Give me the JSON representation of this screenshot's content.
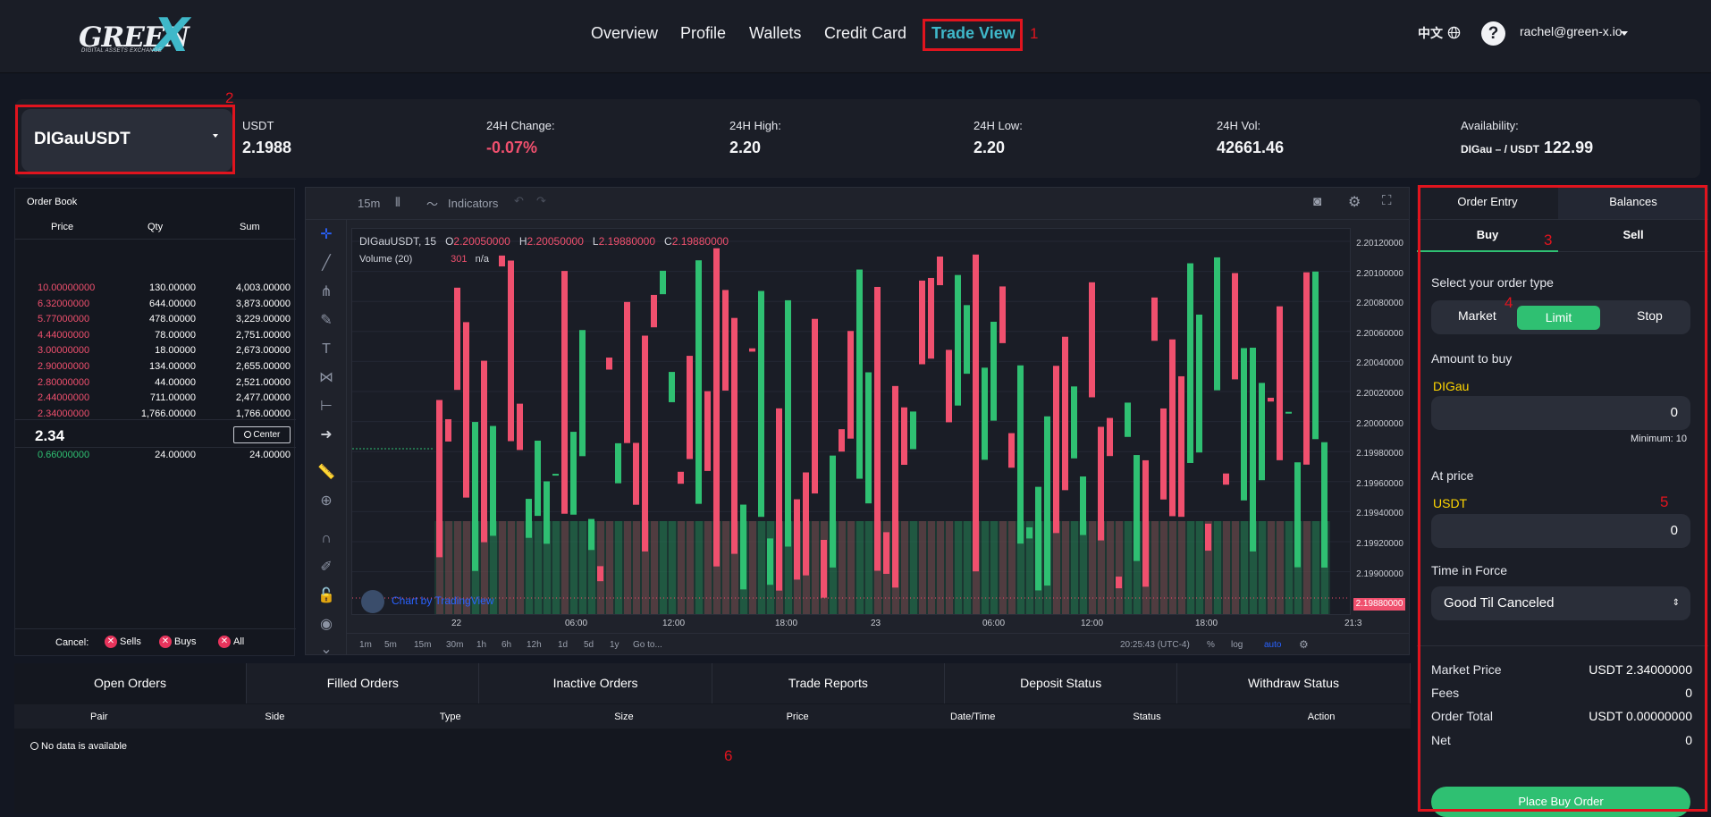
{
  "header": {
    "logo_text": "GREEN",
    "logo_x": "X",
    "logo_sub": "DIGITAL ASSETS EXCHANGE",
    "nav": [
      "Overview",
      "Profile",
      "Wallets",
      "Credit Card",
      "Trade View"
    ],
    "active_nav": "Trade View",
    "language": "中文",
    "help": "?",
    "user": "rachel@green-x.io"
  },
  "annotations": [
    "1",
    "2",
    "3",
    "4",
    "5",
    "6"
  ],
  "ticker": {
    "pair": "DIGauUSDT",
    "quote_label": "USDT",
    "last_price": "2.1988",
    "change_label": "24H Change:",
    "change_value": "-0.07%",
    "high_label": "24H High:",
    "high_value": "2.20",
    "low_label": "24H Low:",
    "low_value": "2.20",
    "vol_label": "24H Vol:",
    "vol_value": "42661.46",
    "avail_label": "Availability:",
    "avail_small": "DIGau – / USDT",
    "avail_value": "122.99"
  },
  "orderbook": {
    "title": "Order Book",
    "headers": [
      "Price",
      "Qty",
      "Sum"
    ],
    "sells": [
      [
        "10.00000000",
        "130.00000",
        "4,003.00000"
      ],
      [
        "6.32000000",
        "644.00000",
        "3,873.00000"
      ],
      [
        "5.77000000",
        "478.00000",
        "3,229.00000"
      ],
      [
        "4.44000000",
        "78.00000",
        "2,751.00000"
      ],
      [
        "3.00000000",
        "18.00000",
        "2,673.00000"
      ],
      [
        "2.90000000",
        "134.00000",
        "2,655.00000"
      ],
      [
        "2.80000000",
        "44.00000",
        "2,521.00000"
      ],
      [
        "2.44000000",
        "711.00000",
        "2,477.00000"
      ],
      [
        "2.34000000",
        "1,766.00000",
        "1,766.00000"
      ]
    ],
    "last": "2.34",
    "center_label": "Center",
    "buys": [
      [
        "0.66000000",
        "24.00000",
        "24.00000"
      ]
    ],
    "cancel_label": "Cancel:",
    "cancel_sells": "Sells",
    "cancel_buys": "Buys",
    "cancel_all": "All"
  },
  "chart": {
    "interval": "15m",
    "indicators_label": "Indicators",
    "symbol_line": "DIGauUSDT, 15",
    "o_label": "O",
    "o_value": "2.20050000",
    "h_label": "H",
    "h_value": "2.20050000",
    "l_label": "L",
    "l_value": "2.19880000",
    "c_label": "C",
    "c_value": "2.19880000",
    "volume_label": "Volume (20)",
    "volume_value": "301",
    "volume_na": "n/a",
    "watermark": "Chart by TradingView",
    "price_ticks": [
      "2.20120000",
      "2.20100000",
      "2.20080000",
      "2.20060000",
      "2.20040000",
      "2.20020000",
      "2.20000000",
      "2.19980000",
      "2.19960000",
      "2.19940000",
      "2.19920000",
      "2.19900000"
    ],
    "last_price_tag": "2.19880000",
    "time_ticks": [
      "22",
      "06:00",
      "12:00",
      "18:00",
      "23",
      "06:00",
      "12:00",
      "18:00",
      "21:3"
    ],
    "ranges": [
      "1m",
      "5m",
      "15m",
      "30m",
      "1h",
      "6h",
      "12h",
      "1d",
      "5d",
      "1y",
      "Go to..."
    ],
    "clock": "20:25:43 (UTC-4)",
    "pct": "%",
    "log": "log",
    "auto": "auto"
  },
  "chart_data": {
    "type": "candlestick",
    "symbol": "DIGauUSDT",
    "interval": "15",
    "ylim": [
      2.1988,
      2.2012
    ],
    "last": {
      "open": 2.2005,
      "high": 2.2005,
      "low": 2.1988,
      "close": 2.1988
    },
    "volume_last": 301
  },
  "order_panel": {
    "tab_entry": "Order Entry",
    "tab_balances": "Balances",
    "buy": "Buy",
    "sell": "Sell",
    "order_type_label": "Select your order type",
    "types": [
      "Market",
      "Limit",
      "Stop"
    ],
    "active_type": "Limit",
    "amount_label": "Amount to buy",
    "amount_asset": "DIGau",
    "amount_value": "0",
    "minimum": "Minimum: 10",
    "price_label": "At price",
    "price_asset": "USDT",
    "price_value": "0",
    "tif_label": "Time in Force",
    "tif_value": "Good Til Canceled",
    "market_price_label": "Market Price",
    "market_price_value": "USDT 2.34000000",
    "fees_label": "Fees",
    "fees_value": "0",
    "total_label": "Order Total",
    "total_value": "USDT 0.00000000",
    "net_label": "Net",
    "net_value": "0",
    "place_label": "Place Buy Order"
  },
  "bottom": {
    "tabs": [
      "Open Orders",
      "Filled Orders",
      "Inactive Orders",
      "Trade Reports",
      "Deposit Status",
      "Withdraw Status"
    ],
    "columns": [
      "Pair",
      "Side",
      "Type",
      "Size",
      "Price",
      "Date/Time",
      "Status",
      "Action"
    ],
    "no_data": "No data is available"
  },
  "colors": {
    "accent": "#3fb8c9",
    "buy": "#2fc072",
    "sell": "#f0506e",
    "annotation": "#e0141e",
    "highlight": "#ffd600"
  }
}
